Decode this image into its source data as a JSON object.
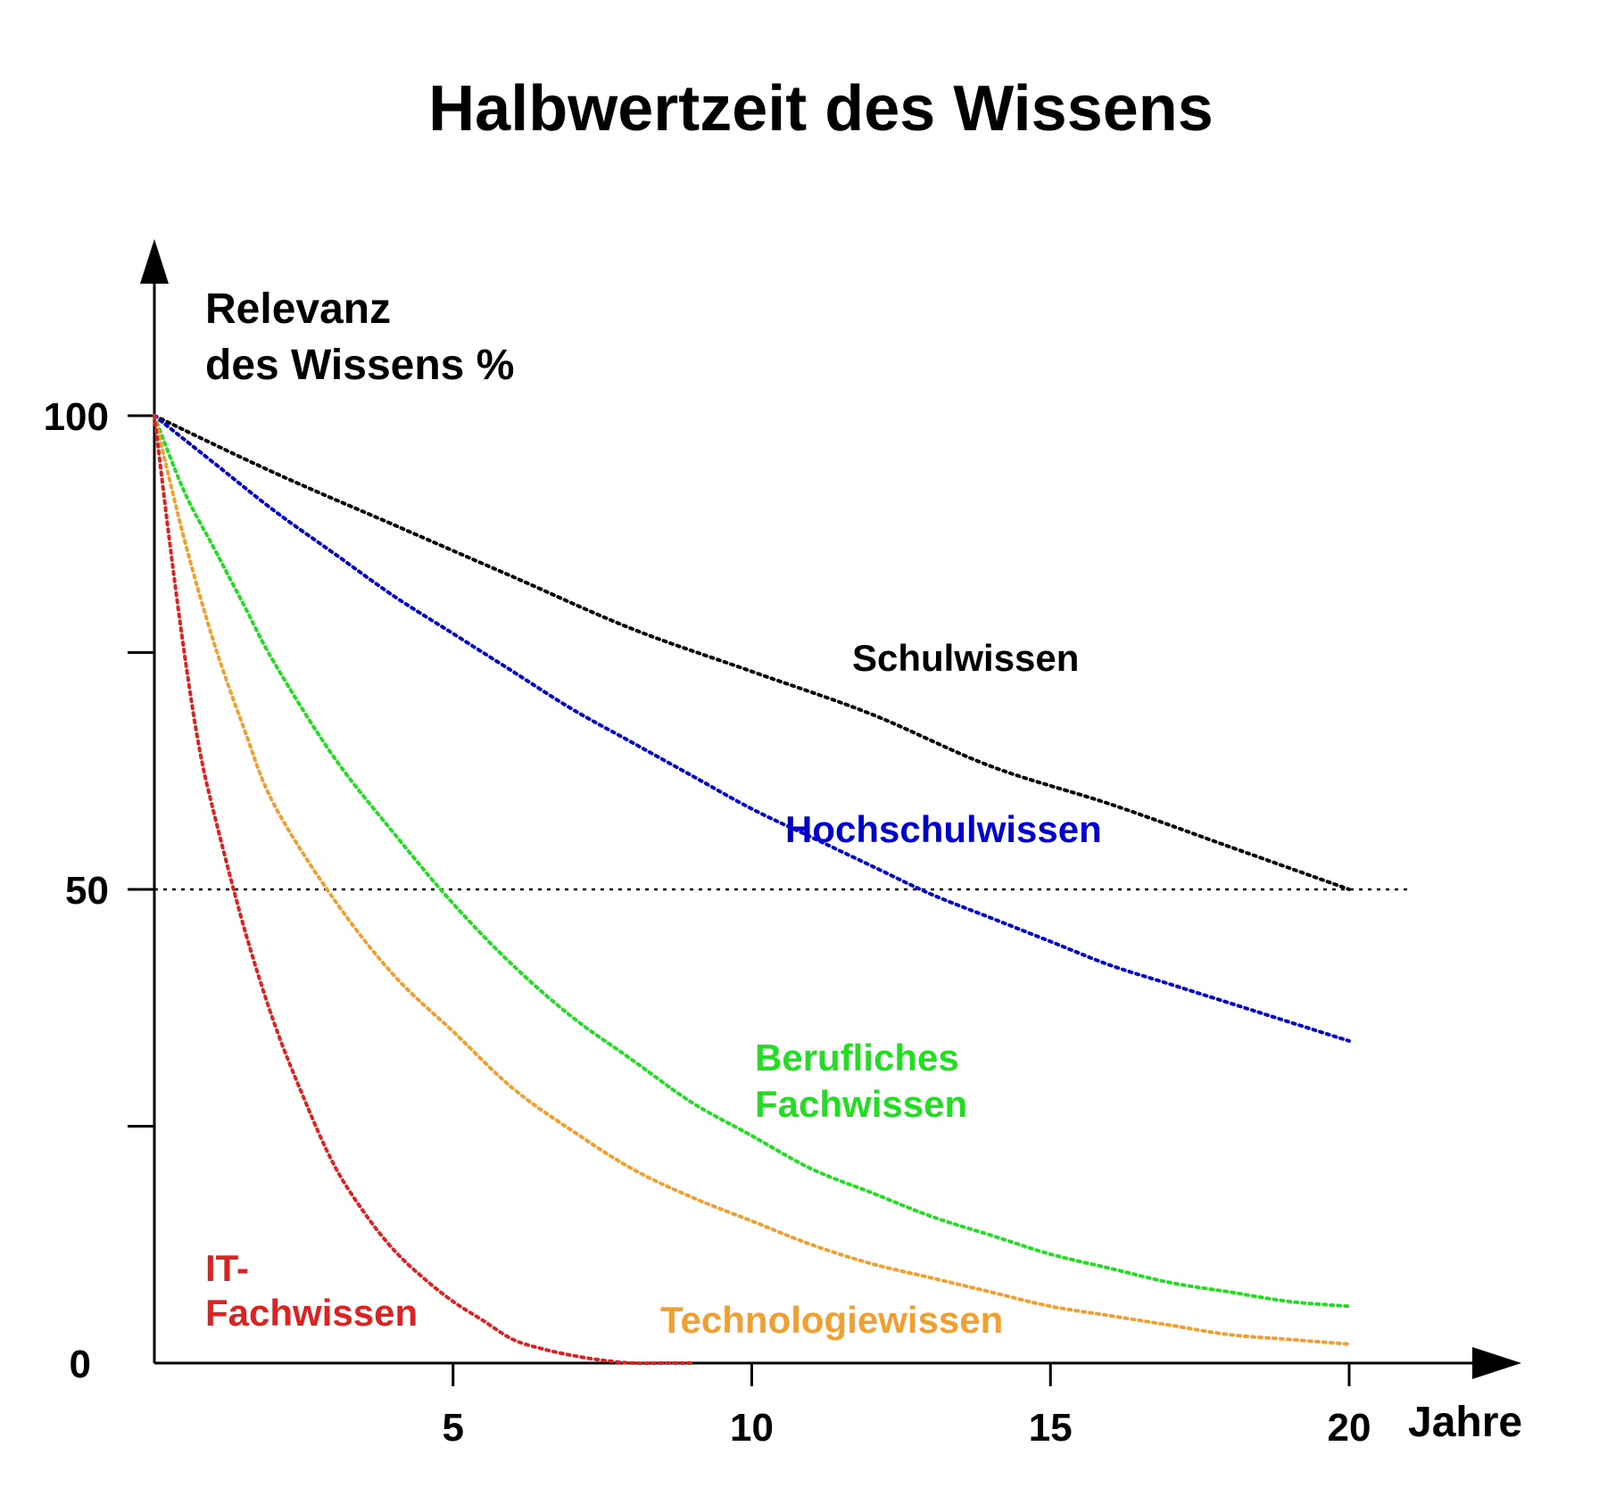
{
  "chart_data": {
    "type": "line",
    "title": "Halbwertzeit des Wissens",
    "ylabel": [
      "Relevanz",
      "des Wissens %"
    ],
    "xlabel": "Jahre",
    "xlim": [
      0,
      21
    ],
    "ylim": [
      0,
      110
    ],
    "x_ticks": [
      5,
      10,
      15,
      20
    ],
    "x_tick_labels": [
      "5",
      "10",
      "15",
      "20"
    ],
    "y_ticks": [
      0,
      25,
      50,
      75,
      100
    ],
    "y_tick_labels": [
      "0",
      "",
      "50",
      "",
      "100"
    ],
    "reference_line": {
      "y": 50,
      "x_to": 21,
      "style": "dotted"
    },
    "grid": false,
    "series": [
      {
        "name": "Schulwissen",
        "color": "#000000",
        "label_lines": [
          "Schulwissen"
        ],
        "x": [
          0,
          2,
          4,
          6,
          8,
          10,
          12,
          14,
          16,
          18,
          20
        ],
        "y": [
          100,
          94,
          88.5,
          83,
          77.5,
          73,
          68.5,
          63,
          59,
          54.5,
          50
        ]
      },
      {
        "name": "Hochschulwissen",
        "color": "#0000cc",
        "label_lines": [
          "Hochschulwissen"
        ],
        "x": [
          0,
          1,
          2,
          3,
          4,
          5,
          6,
          7,
          8,
          9,
          10,
          11,
          12,
          13,
          14,
          15,
          16,
          17,
          18,
          19,
          20
        ],
        "y": [
          100,
          95,
          90,
          85.5,
          81,
          77,
          73,
          69,
          65.5,
          62,
          58.5,
          55.5,
          52.5,
          49.5,
          47,
          44.5,
          42,
          40,
          38,
          36,
          34
        ]
      },
      {
        "name": "Berufliches Fachwissen",
        "color": "#22dd22",
        "label_lines": [
          "Berufliches",
          "Fachwissen"
        ],
        "x": [
          0,
          0.5,
          1,
          1.5,
          2,
          3,
          4,
          5,
          6,
          7,
          8,
          9,
          10,
          11,
          12,
          13,
          14,
          15,
          16,
          17,
          18,
          19,
          20
        ],
        "y": [
          100,
          92,
          86,
          80,
          74,
          64,
          56,
          48.5,
          42,
          36.5,
          32,
          27.5,
          24,
          20.5,
          18,
          15.5,
          13.5,
          11.5,
          10,
          8.5,
          7.5,
          6.5,
          6
        ]
      },
      {
        "name": "Technologiewissen",
        "color": "#f0a030",
        "label_lines": [
          "Technologiewissen"
        ],
        "x": [
          0,
          0.5,
          1,
          1.5,
          2,
          3,
          4,
          5,
          6,
          7,
          8,
          9,
          10,
          11,
          12,
          13,
          14,
          15,
          16,
          17,
          18,
          19,
          20
        ],
        "y": [
          100,
          87,
          76,
          67,
          59,
          49,
          41,
          35,
          29,
          24.5,
          20.5,
          17.5,
          15,
          12.5,
          10.5,
          9,
          7.5,
          6,
          5,
          4,
          3,
          2.5,
          2
        ]
      },
      {
        "name": "IT-Fachwissen",
        "color": "#dd2222",
        "label_lines": [
          "IT-",
          "Fachwissen"
        ],
        "x": [
          0,
          0.25,
          0.5,
          0.75,
          1,
          1.5,
          2,
          2.5,
          3,
          3.5,
          4,
          4.5,
          5,
          5.5,
          6,
          6.5,
          7,
          7.5,
          8,
          8.5,
          9
        ],
        "y": [
          100,
          87,
          75,
          65,
          58,
          46,
          36,
          28,
          21,
          16,
          12,
          9,
          6.5,
          4.5,
          2.5,
          1.5,
          0.8,
          0.3,
          0,
          0,
          0
        ]
      }
    ]
  }
}
